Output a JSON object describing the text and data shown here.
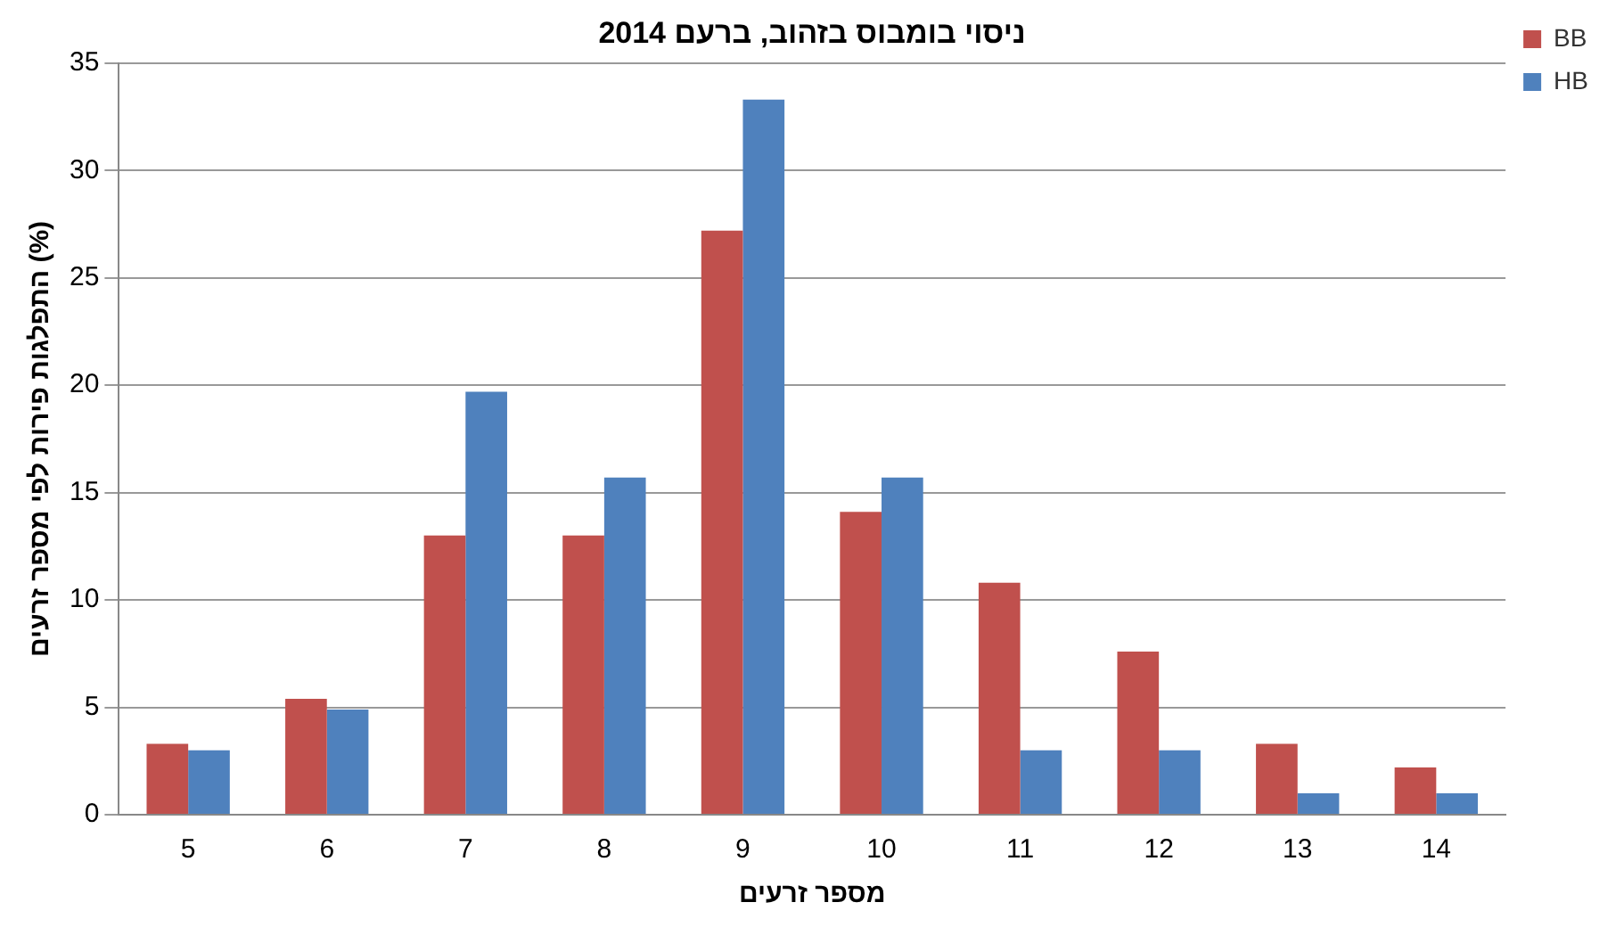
{
  "chart_data": {
    "type": "bar",
    "title": "ניסוי בומבוס בזהוב, ברעם 2014",
    "xlabel": "מספר זרעים",
    "ylabel": "התפלגות פירות לפי מספר זרעים (%)",
    "categories": [
      "5",
      "6",
      "7",
      "8",
      "9",
      "10",
      "11",
      "12",
      "13",
      "14"
    ],
    "series": [
      {
        "name": "BB",
        "color": "#c0504d",
        "values": [
          3.3,
          5.4,
          13,
          13,
          27.2,
          14.1,
          10.8,
          7.6,
          3.3,
          2.2
        ]
      },
      {
        "name": "HB",
        "color": "#4f81bd",
        "values": [
          3,
          4.9,
          19.7,
          15.7,
          33.3,
          15.7,
          3,
          3,
          1,
          1
        ]
      }
    ],
    "ylim": [
      0,
      35
    ],
    "yticks": [
      0,
      5,
      10,
      15,
      20,
      25,
      30,
      35
    ],
    "grid": "y",
    "legend": "top right"
  }
}
